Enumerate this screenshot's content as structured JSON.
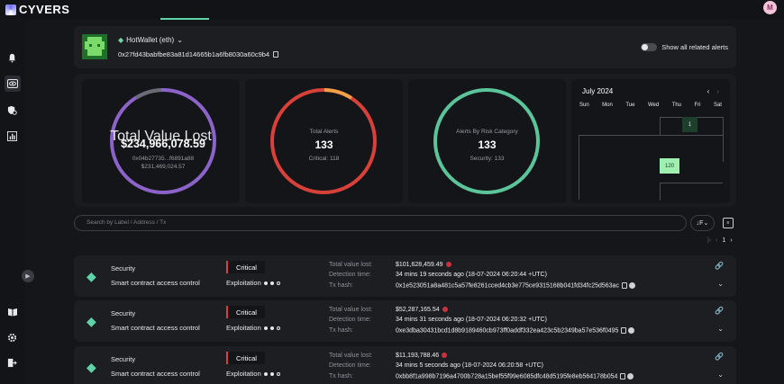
{
  "app": {
    "title": "CYVERS",
    "user_initial": "M"
  },
  "wallet": {
    "name": "HotWallet (eth)",
    "address": "0x27fd43babfbe83a81d14665b1a6fb8030a60c9b4",
    "show_related_label": "Show all related alerts"
  },
  "stats": {
    "total_value_lost": {
      "title": "Total Value Lost",
      "value": "$234,966,078.59",
      "sub1": "0x04b27735...f6891a88",
      "sub2": "$231,469,024.57"
    },
    "total_alerts": {
      "title": "Total Alerts",
      "value": "133",
      "sub": "Critical: 118"
    },
    "risk_category": {
      "title": "Alerts By Risk Category",
      "value": "133",
      "sub": "Security: 133"
    }
  },
  "calendar": {
    "title": "July 2024",
    "days": [
      "Sun",
      "Mon",
      "Tue",
      "Wed",
      "Thu",
      "Fri",
      "Sat"
    ],
    "cells": [
      {
        "label": "1"
      },
      {
        "label": "120"
      }
    ]
  },
  "search": {
    "placeholder": "Search by Label / Address / Tx",
    "sort_label": "↓F"
  },
  "pager": {
    "page": "1"
  },
  "labels": {
    "total_value_lost": "Total value lost:",
    "detection_time": "Detection time:",
    "tx_hash": "Tx hash:",
    "exploitation": "Exploitation"
  },
  "alerts": [
    {
      "type": "Security",
      "name": "Smart contract access control",
      "severity": "Critical",
      "value_lost": "$101,628,459.49",
      "detection_time": "34 mins 19 seconds ago (18-07-2024 06:20:44 +UTC)",
      "tx_hash": "0x1e523051a8a481c5a57fe8261cced4cb3e775ce9315168b041fd34fc25d563ac"
    },
    {
      "type": "Security",
      "name": "Smart contract access control",
      "severity": "Critical",
      "value_lost": "$52,287,165.54",
      "detection_time": "34 mins 31 seconds ago (18-07-2024 06:20:32 +UTC)",
      "tx_hash": "0xe3dba30431bcd1d8b9189460cb973ff0addf332ea423c5b2349ba57e536f0495"
    },
    {
      "type": "Security",
      "name": "Smart contract access control",
      "severity": "Critical",
      "value_lost": "$11,193,788.46",
      "detection_time": "34 mins 5 seconds ago (18-07-2024 06:20:58 +UTC)",
      "tx_hash": "0xbb8f1a998b7196a4700b728a15bef55f99e6085dfc48d5195fe8eb564178b054"
    }
  ],
  "colors": {
    "accent": "#5fd3a8",
    "critical": "#e0394a",
    "ring_purple": "#8c63c9",
    "ring_red": "#d8403a",
    "ring_green": "#5cc49a"
  }
}
